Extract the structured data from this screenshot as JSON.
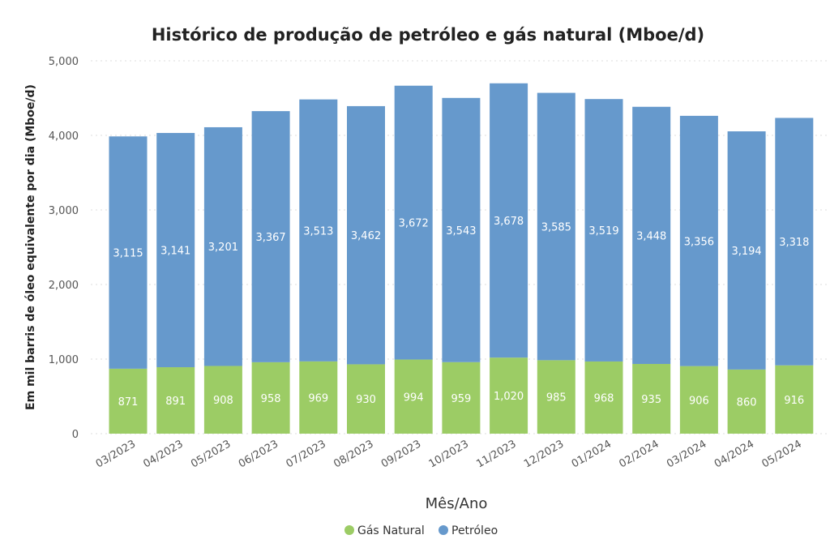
{
  "chart_data": {
    "type": "bar",
    "stacked": true,
    "title": "Histórico de produção de petróleo e gás natural (Mboe/d)",
    "xlabel": "Mês/Ano",
    "ylabel": "Em mil barris de óleo equivalente por dia (Mboe/d)",
    "ylim": [
      0,
      5000
    ],
    "yticks": [
      0,
      1000,
      2000,
      3000,
      4000,
      5000
    ],
    "ytick_labels": [
      "0",
      "1,000",
      "2,000",
      "3,000",
      "4,000",
      "5,000"
    ],
    "grid": true,
    "legend_position": "bottom-center",
    "categories": [
      "03/2023",
      "04/2023",
      "05/2023",
      "06/2023",
      "07/2023",
      "08/2023",
      "09/2023",
      "10/2023",
      "11/2023",
      "12/2023",
      "01/2024",
      "02/2024",
      "03/2024",
      "04/2024",
      "05/2024"
    ],
    "series": [
      {
        "name": "Gás Natural",
        "color": "#9ccc65",
        "values": [
          871,
          891,
          908,
          958,
          969,
          930,
          994,
          959,
          1020,
          985,
          968,
          935,
          906,
          860,
          916
        ],
        "labels": [
          "871",
          "891",
          "908",
          "958",
          "969",
          "930",
          "994",
          "959",
          "1,020",
          "985",
          "968",
          "935",
          "906",
          "860",
          "916"
        ]
      },
      {
        "name": "Petróleo",
        "color": "#6699cc",
        "values": [
          3115,
          3141,
          3201,
          3367,
          3513,
          3462,
          3672,
          3543,
          3678,
          3585,
          3519,
          3448,
          3356,
          3194,
          3318
        ],
        "labels": [
          "3,115",
          "3,141",
          "3,201",
          "3,367",
          "3,513",
          "3,462",
          "3,672",
          "3,543",
          "3,678",
          "3,585",
          "3,519",
          "3,448",
          "3,356",
          "3,194",
          "3,318"
        ]
      }
    ]
  }
}
